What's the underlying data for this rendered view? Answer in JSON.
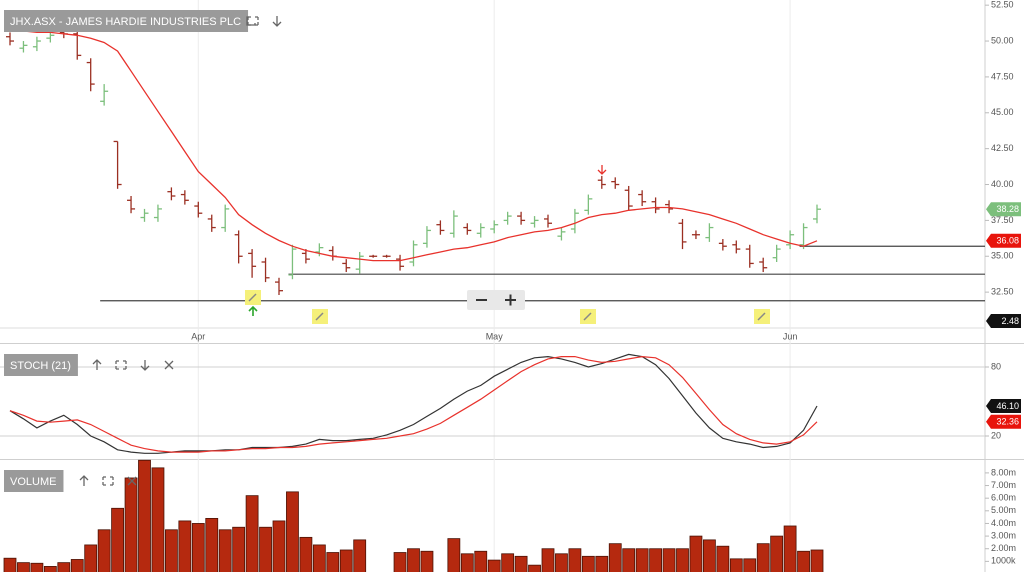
{
  "chart_data": [
    {
      "type": "ohlc",
      "title": "JHX.ASX - JAMES HARDIE INDUSTRIES PLC",
      "categories": [
        null,
        null,
        null,
        null,
        null,
        null,
        null,
        null,
        null,
        null,
        null,
        null,
        null,
        null,
        "Apr",
        null,
        null,
        null,
        null,
        null,
        null,
        null,
        null,
        null,
        null,
        null,
        null,
        null,
        null,
        null,
        null,
        null,
        null,
        null,
        null,
        null,
        "May",
        null,
        null,
        null,
        null,
        null,
        null,
        null,
        null,
        null,
        null,
        null,
        null,
        null,
        null,
        null,
        null,
        null,
        null,
        null,
        null,
        null,
        "Jun",
        null,
        null
      ],
      "open": [
        50.3,
        49.5,
        49.6,
        50.2,
        50.6,
        50.5,
        48.5,
        45.8,
        43.0,
        38.9,
        37.7,
        37.7,
        39.5,
        39.3,
        38.5,
        37.6,
        37.0,
        36.5,
        35.2,
        34.6,
        33.2,
        33.7,
        35.2,
        35.3,
        35.4,
        34.5,
        34.1,
        35.0,
        35.0,
        34.8,
        34.6,
        35.9,
        37.2,
        36.6,
        37.0,
        36.6,
        36.9,
        37.5,
        37.8,
        37.3,
        37.6,
        36.4,
        36.9,
        38.2,
        40.3,
        40.2,
        39.6,
        39.3,
        38.8,
        38.6,
        37.3,
        36.5,
        36.3,
        35.9,
        35.8,
        35.5,
        34.6,
        34.9,
        35.8,
        35.8,
        37.6
      ],
      "high": [
        50.6,
        50.0,
        50.3,
        50.7,
        50.9,
        50.8,
        48.8,
        47.0,
        43.0,
        39.2,
        38.3,
        38.6,
        39.8,
        39.6,
        38.8,
        37.9,
        38.6,
        36.8,
        35.5,
        34.9,
        33.5,
        35.8,
        35.5,
        35.9,
        35.7,
        34.8,
        35.3,
        35.1,
        35.1,
        35.1,
        36.1,
        37.1,
        37.5,
        38.2,
        37.3,
        37.3,
        37.5,
        38.1,
        38.1,
        37.8,
        37.9,
        37.0,
        38.3,
        39.3,
        40.6,
        40.5,
        39.9,
        39.6,
        39.1,
        38.9,
        37.6,
        36.8,
        37.3,
        36.2,
        36.1,
        35.8,
        34.9,
        35.8,
        36.8,
        37.3,
        38.6
      ],
      "low": [
        49.7,
        49.2,
        49.3,
        49.9,
        50.2,
        48.7,
        46.5,
        45.5,
        39.7,
        38.0,
        37.4,
        37.4,
        38.9,
        38.6,
        37.7,
        36.7,
        36.7,
        34.5,
        33.5,
        33.2,
        32.3,
        33.4,
        34.5,
        35.0,
        34.7,
        33.9,
        33.8,
        34.9,
        34.9,
        34.0,
        34.3,
        35.6,
        36.5,
        36.3,
        36.5,
        36.3,
        36.6,
        37.2,
        37.2,
        37.0,
        37.0,
        36.1,
        36.6,
        37.9,
        39.7,
        39.7,
        38.2,
        38.5,
        38.0,
        38.0,
        35.5,
        36.2,
        36.0,
        35.4,
        35.2,
        34.2,
        33.9,
        34.6,
        35.5,
        35.5,
        37.3
      ],
      "close": [
        50.0,
        49.7,
        50.0,
        50.4,
        50.5,
        49.0,
        47.0,
        46.5,
        40.0,
        38.3,
        38.0,
        38.3,
        39.2,
        38.9,
        38.0,
        37.0,
        38.3,
        35.0,
        34.3,
        33.5,
        32.6,
        35.5,
        34.8,
        35.6,
        35.0,
        34.2,
        35.0,
        35.0,
        35.0,
        34.3,
        35.8,
        36.8,
        36.8,
        37.8,
        36.8,
        37.0,
        37.2,
        37.8,
        37.5,
        37.5,
        37.3,
        36.7,
        38.0,
        39.0,
        40.0,
        40.0,
        38.5,
        38.8,
        38.3,
        38.3,
        36.0,
        36.5,
        37.0,
        35.7,
        35.5,
        34.5,
        34.2,
        35.5,
        36.5,
        37.0,
        38.28
      ],
      "close_last_label": "38.28",
      "up_color": "#7cbf7c",
      "down_color": "#9b2f22",
      "moving_average": {
        "color": "#e8322c",
        "last_label": "36.08",
        "values": [
          50.7,
          50.7,
          50.6,
          50.6,
          50.5,
          50.4,
          50.2,
          49.9,
          49.3,
          47.9,
          46.5,
          45.1,
          43.7,
          42.3,
          40.9,
          40.0,
          39.1,
          37.9,
          37.2,
          36.6,
          36.1,
          35.7,
          35.4,
          35.2,
          35.0,
          34.9,
          34.8,
          34.7,
          34.7,
          34.7,
          34.9,
          35.1,
          35.3,
          35.5,
          35.6,
          35.8,
          36.0,
          36.3,
          36.5,
          36.7,
          36.8,
          37.0,
          37.3,
          37.7,
          37.9,
          38.0,
          38.2,
          38.3,
          38.4,
          38.4,
          38.3,
          38.1,
          37.9,
          37.6,
          37.3,
          36.9,
          36.5,
          36.2,
          35.9,
          35.7,
          36.08
        ]
      },
      "support_lines": [
        {
          "value": 31.9,
          "from": 7
        },
        {
          "value": 33.75,
          "from": 21
        },
        {
          "value": 35.7,
          "from": 59
        }
      ],
      "extra_label": "2.48",
      "ylim": [
        30.0,
        52.86
      ],
      "yticks": [
        {
          "value": 32.5,
          "label": "32.50"
        },
        {
          "value": 35,
          "label": "35.00"
        },
        {
          "value": 37.5,
          "label": "37.50"
        },
        {
          "value": 40,
          "label": "40.00"
        },
        {
          "value": 42.5,
          "label": "42.50"
        },
        {
          "value": 45,
          "label": "45.00"
        },
        {
          "value": 47.5,
          "label": "47.50"
        },
        {
          "value": 50,
          "label": "50.00"
        },
        {
          "value": 52.5,
          "label": "52.50"
        }
      ]
    },
    {
      "type": "line",
      "title": "STOCH (21)",
      "series": [
        {
          "color": "#333333",
          "last_label": "46.10",
          "values": [
            42,
            35,
            27,
            33,
            38,
            30,
            20,
            15,
            8,
            6,
            5,
            5,
            6,
            7,
            7,
            7,
            8,
            8,
            10,
            10,
            10,
            11,
            13,
            17,
            16,
            16,
            17,
            18,
            21,
            25,
            30,
            37,
            44,
            52,
            59,
            64,
            72,
            78,
            84,
            88,
            89,
            87,
            84,
            80,
            83,
            87,
            91,
            89,
            82,
            70,
            55,
            40,
            27,
            18,
            15,
            13,
            10,
            11,
            14,
            25,
            46.1
          ]
        },
        {
          "color": "#e8322c",
          "last_label": "32.36",
          "values": [
            42,
            38,
            33,
            32,
            33,
            34,
            30,
            24,
            18,
            12,
            9,
            7,
            6,
            6,
            6,
            7,
            7,
            8,
            9,
            9,
            10,
            10,
            11,
            13,
            14,
            15,
            16,
            17,
            18,
            20,
            22,
            26,
            31,
            38,
            45,
            52,
            60,
            68,
            76,
            82,
            87,
            89,
            89,
            86,
            84,
            85,
            87,
            89,
            88,
            82,
            71,
            57,
            43,
            30,
            22,
            17,
            14,
            13,
            15,
            21,
            32.36
          ]
        }
      ],
      "ylim": [
        0,
        100
      ],
      "yticks": [
        20,
        80
      ],
      "grid": true
    },
    {
      "type": "bar",
      "title": "VOLUME",
      "color": "#b5290f",
      "values": [
        1250000,
        900000,
        850000,
        600000,
        900000,
        1150000,
        2300000,
        3500000,
        5200000,
        7600000,
        9000000,
        8400000,
        3500000,
        4200000,
        4000000,
        4400000,
        3500000,
        3700000,
        6200000,
        3700000,
        4200000,
        6500000,
        2900000,
        2300000,
        1700000,
        1900000,
        2700000,
        null,
        null,
        1700000,
        2000000,
        1800000,
        null,
        2800000,
        1600000,
        1800000,
        1100000,
        1600000,
        1400000,
        700000,
        2000000,
        1600000,
        2000000,
        1400000,
        1400000,
        2400000,
        2000000,
        2000000,
        2000000,
        2000000,
        2000000,
        3000000,
        2700000,
        2200000,
        1200000,
        1200000,
        2400000,
        3000000,
        3800000,
        1800000,
        1900000
      ],
      "ylim": [
        0,
        9100000
      ],
      "yticks": [
        {
          "value": 1000000,
          "label": "1000k"
        },
        {
          "value": 2000000,
          "label": "2.00m"
        },
        {
          "value": 3000000,
          "label": "3.00m"
        },
        {
          "value": 4000000,
          "label": "4.00m"
        },
        {
          "value": 5000000,
          "label": "5.00m"
        },
        {
          "value": 6000000,
          "label": "6.00m"
        },
        {
          "value": 7000000,
          "label": "7.00m"
        },
        {
          "value": 8000000,
          "label": "8.00m"
        }
      ]
    }
  ]
}
